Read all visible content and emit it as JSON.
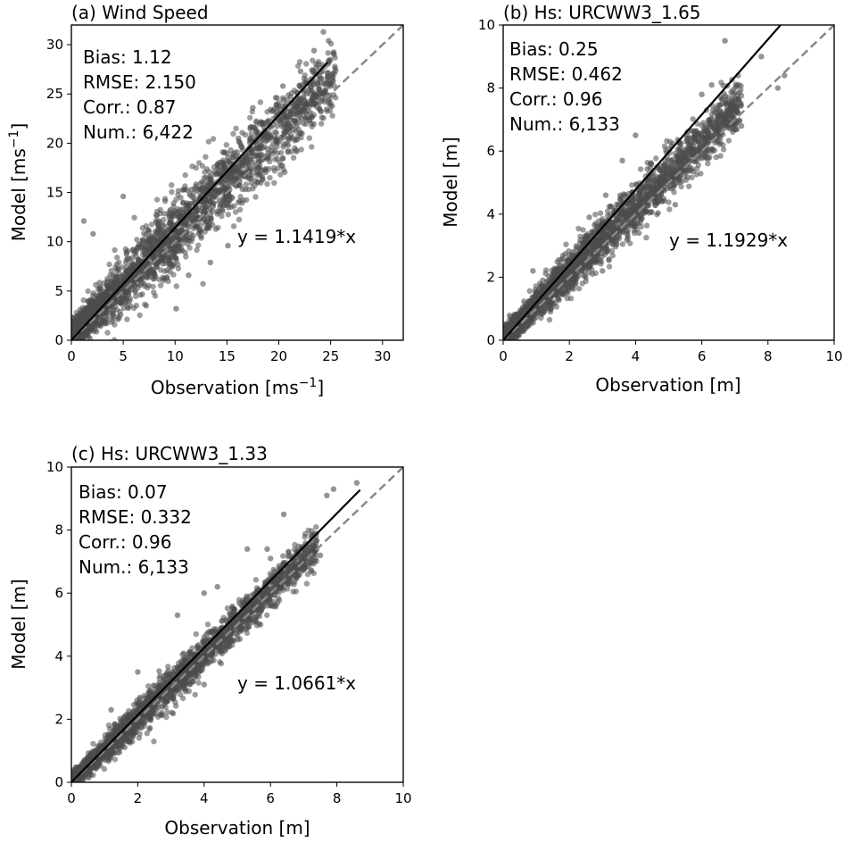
{
  "chart_data": [
    {
      "type": "scatter",
      "title": "(a) Wind Speed",
      "xlabel": "Observation [ms",
      "xlabel_sup": "−1",
      "xlabel_end": "]",
      "ylabel": "Model [ms",
      "ylabel_sup": "−1",
      "ylabel_end": "]",
      "xlim": [
        0,
        32
      ],
      "ylim": [
        0,
        32
      ],
      "xticks": [
        0,
        5,
        10,
        15,
        20,
        25,
        30
      ],
      "yticks": [
        0,
        5,
        10,
        15,
        20,
        25,
        30
      ],
      "stats": [
        "Bias: 1.12",
        "RMSE: 2.150",
        "Corr.: 0.87",
        "Num.: 6,422"
      ],
      "fit_label": "y = 1.1419*x",
      "fit_slope": 1.1419,
      "fit_xmax": 24.7,
      "one_to_one": true,
      "point_cloud": {
        "count": 6422,
        "spread": 1.9,
        "mean_bias": 1.12,
        "x_max": 25.5
      },
      "outliers": [
        [
          24.3,
          31.3
        ],
        [
          23.4,
          29.4
        ],
        [
          24.8,
          30.4
        ],
        [
          22.1,
          27.3
        ],
        [
          22.6,
          26.1
        ],
        [
          20.4,
          25.8
        ],
        [
          21.2,
          24.1
        ],
        [
          19.0,
          22.3
        ],
        [
          17.5,
          23.6
        ],
        [
          16.1,
          20.5
        ],
        [
          18.9,
          20.3
        ],
        [
          20.9,
          19.8
        ],
        [
          15.1,
          9.6
        ],
        [
          13.4,
          7.9
        ],
        [
          11.3,
          6.6
        ],
        [
          10.1,
          3.2
        ],
        [
          2.1,
          10.8
        ],
        [
          1.2,
          12.1
        ],
        [
          5.0,
          14.6
        ]
      ]
    },
    {
      "type": "scatter",
      "title": "(b) Hs: URCWW3_1.65",
      "xlabel": "Observation [m]",
      "ylabel": "Model [m]",
      "xlim": [
        0,
        10
      ],
      "ylim": [
        0,
        10
      ],
      "xticks": [
        0,
        2,
        4,
        6,
        8,
        10
      ],
      "yticks": [
        0,
        2,
        4,
        6,
        8,
        10
      ],
      "stats": [
        "Bias: 0.25",
        "RMSE: 0.462",
        "Corr.: 0.96",
        "Num.: 6,133"
      ],
      "fit_label": "y = 1.1929*x",
      "fit_slope": 1.1929,
      "fit_xmax": 8.4,
      "one_to_one": true,
      "point_cloud": {
        "count": 6133,
        "spread": 0.38,
        "mean_bias": 0.25,
        "x_max": 7.2
      },
      "outliers": [
        [
          6.7,
          9.5
        ],
        [
          7.8,
          9.0
        ],
        [
          8.3,
          8.0
        ],
        [
          8.5,
          8.4
        ],
        [
          6.3,
          8.1
        ],
        [
          6.6,
          7.2
        ],
        [
          6.0,
          7.8
        ],
        [
          7.2,
          6.8
        ],
        [
          5.8,
          6.4
        ],
        [
          4.0,
          6.5
        ],
        [
          3.6,
          5.7
        ],
        [
          5.2,
          4.3
        ],
        [
          4.1,
          3.4
        ],
        [
          3.1,
          4.6
        ],
        [
          2.6,
          3.9
        ],
        [
          3.0,
          2.2
        ],
        [
          0.9,
          2.2
        ],
        [
          1.2,
          1.9
        ]
      ]
    },
    {
      "type": "scatter",
      "title": "(c) Hs: URCWW3_1.33",
      "xlabel": "Observation [m]",
      "ylabel": "Model [m]",
      "xlim": [
        0,
        10
      ],
      "ylim": [
        0,
        10
      ],
      "xticks": [
        0,
        2,
        4,
        6,
        8,
        10
      ],
      "yticks": [
        0,
        2,
        4,
        6,
        8,
        10
      ],
      "stats": [
        "Bias: 0.07",
        "RMSE: 0.332",
        "Corr.: 0.96",
        "Num.: 6,133"
      ],
      "fit_label": "y = 1.0661*x",
      "fit_slope": 1.0661,
      "fit_xmax": 8.7,
      "one_to_one": true,
      "point_cloud": {
        "count": 6133,
        "spread": 0.3,
        "mean_bias": 0.07,
        "x_max": 7.4
      },
      "outliers": [
        [
          8.6,
          9.5
        ],
        [
          7.9,
          9.3
        ],
        [
          7.7,
          9.1
        ],
        [
          6.4,
          8.5
        ],
        [
          5.9,
          7.4
        ],
        [
          5.3,
          7.4
        ],
        [
          6.0,
          7.1
        ],
        [
          7.5,
          7.2
        ],
        [
          4.4,
          6.2
        ],
        [
          4.0,
          6.0
        ],
        [
          3.2,
          5.3
        ],
        [
          6.7,
          6.9
        ],
        [
          5.7,
          5.0
        ],
        [
          4.1,
          3.8
        ],
        [
          4.0,
          3.1
        ],
        [
          2.0,
          3.5
        ],
        [
          1.2,
          2.3
        ]
      ]
    }
  ]
}
